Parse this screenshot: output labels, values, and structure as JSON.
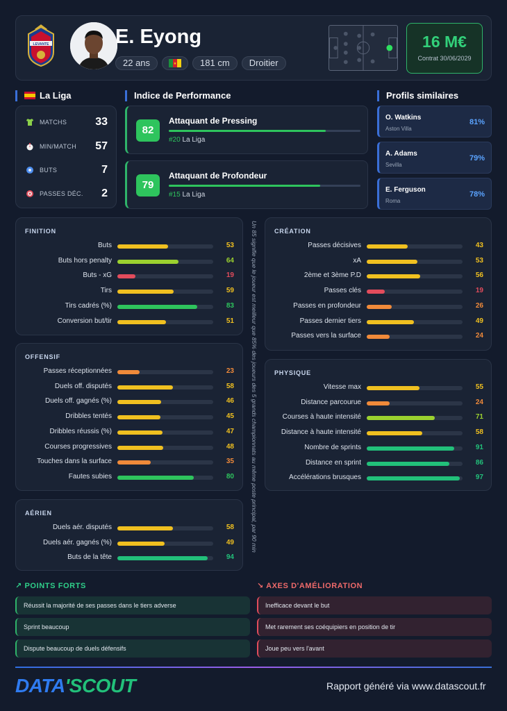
{
  "player": {
    "name": "E. Eyong",
    "age": "22 ans",
    "height": "181 cm",
    "foot": "Droitier",
    "value": "16 M€",
    "contract": "Contrat 30/06/2029"
  },
  "league": {
    "name": "La Liga"
  },
  "stats": [
    {
      "label": "MATCHS",
      "value": "33",
      "icon": "shirt-icon"
    },
    {
      "label": "MIN/MATCH",
      "value": "57",
      "icon": "clock-icon"
    },
    {
      "label": "BUTS",
      "value": "7",
      "icon": "ball-icon"
    },
    {
      "label": "PASSES DÉC.",
      "value": "2",
      "icon": "target-icon"
    }
  ],
  "performance": {
    "title": "Indice de Performance",
    "items": [
      {
        "score": "82",
        "name": "Attaquant de Pressing",
        "rank": "#20",
        "league": "La Liga",
        "pct": 82
      },
      {
        "score": "79",
        "name": "Attaquant de Profondeur",
        "rank": "#15",
        "league": "La Liga",
        "pct": 79
      }
    ]
  },
  "similar": {
    "title": "Profils similaires",
    "items": [
      {
        "name": "O. Watkins",
        "club": "Aston Villa",
        "pct": "81%"
      },
      {
        "name": "A. Adams",
        "club": "Sevilla",
        "pct": "79%"
      },
      {
        "name": "E. Ferguson",
        "club": "Roma",
        "pct": "78%"
      }
    ]
  },
  "finition": {
    "title": "FINITION",
    "rows": [
      {
        "label": "Buts",
        "value": "53"
      },
      {
        "label": "Buts hors penalty",
        "value": "64"
      },
      {
        "label": "Buts - xG",
        "value": "19"
      },
      {
        "label": "Tirs",
        "value": "59"
      },
      {
        "label": "Tirs cadrés (%)",
        "value": "83"
      },
      {
        "label": "Conversion but/tir",
        "value": "51"
      }
    ]
  },
  "offensif": {
    "title": "OFFENSIF",
    "rows": [
      {
        "label": "Passes réceptionnées",
        "value": "23"
      },
      {
        "label": "Duels off. disputés",
        "value": "58"
      },
      {
        "label": "Duels off. gagnés (%)",
        "value": "46"
      },
      {
        "label": "Dribbles tentés",
        "value": "45"
      },
      {
        "label": "Dribbles réussis (%)",
        "value": "47"
      },
      {
        "label": "Courses progressives",
        "value": "48"
      },
      {
        "label": "Touches dans la surface",
        "value": "35"
      },
      {
        "label": "Fautes subies",
        "value": "80"
      }
    ]
  },
  "aerien": {
    "title": "AÉRIEN",
    "rows": [
      {
        "label": "Duels aér. disputés",
        "value": "58"
      },
      {
        "label": "Duels aér. gagnés (%)",
        "value": "49"
      },
      {
        "label": "Buts de la tête",
        "value": "94"
      }
    ]
  },
  "creation": {
    "title": "CRÉATION",
    "rows": [
      {
        "label": "Passes décisives",
        "value": "43"
      },
      {
        "label": "xA",
        "value": "53"
      },
      {
        "label": "2ème et 3ème P.D",
        "value": "56"
      },
      {
        "label": "Passes clés",
        "value": "19"
      },
      {
        "label": "Passes en profondeur",
        "value": "26"
      },
      {
        "label": "Passes dernier tiers",
        "value": "49"
      },
      {
        "label": "Passes vers la surface",
        "value": "24"
      }
    ]
  },
  "physique": {
    "title": "PHYSIQUE",
    "rows": [
      {
        "label": "Vitesse max",
        "value": "55"
      },
      {
        "label": "Distance parcourue",
        "value": "24"
      },
      {
        "label": "Courses à haute intensité",
        "value": "71"
      },
      {
        "label": "Distance à haute intensité",
        "value": "58"
      },
      {
        "label": "Nombre de sprints",
        "value": "91"
      },
      {
        "label": "Distance en sprint",
        "value": "86"
      },
      {
        "label": "Accélérations brusques",
        "value": "97"
      }
    ]
  },
  "note": "Un 85 signifie que le joueur est meilleur que 85% des joueurs des 5 grands championnats au même poste principal, par 90 min",
  "strengths": {
    "title": "POINTS FORTS",
    "items": [
      "Réussit la majorité de ses passes dans le tiers adverse",
      "Sprint beaucoup",
      "Dispute beaucoup de duels défensifs"
    ]
  },
  "weaknesses": {
    "title": "AXES D'AMÉLIORATION",
    "items": [
      "Inefficace devant le but",
      "Met rarement ses coéquipiers en position de tir",
      "Joue peu vers l'avant"
    ]
  },
  "footer": {
    "logo_a": "DATA",
    "logo_b": "'SCOUT",
    "generated": "Rapport généré via www.datascout.fr"
  },
  "colors": {
    "green": "#2ec45d",
    "teal": "#22c07a",
    "lime": "#9bd12f",
    "yellow": "#f0c020",
    "orange": "#f08a3a",
    "red": "#e24c5c",
    "accent": "#3a6fd8"
  }
}
